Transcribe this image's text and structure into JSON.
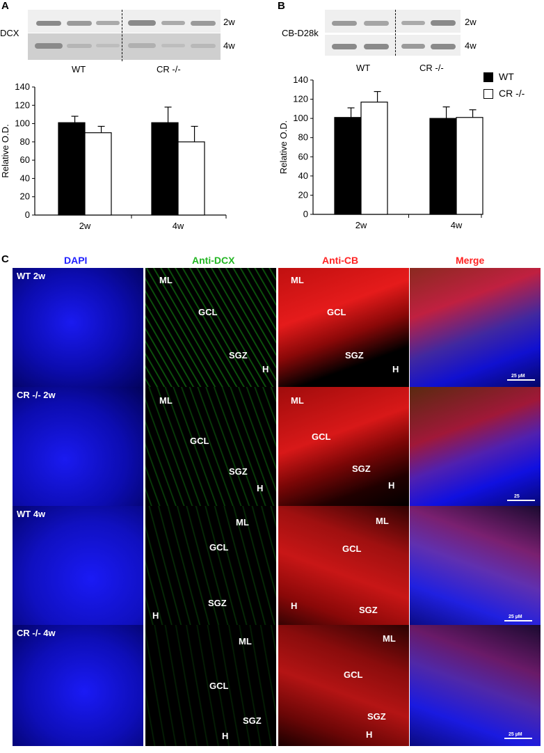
{
  "panel_a": {
    "letter": "A",
    "blot_label": "DCX",
    "row_labels": [
      "2w",
      "4w"
    ],
    "group_labels": [
      "WT",
      "CR -/-"
    ]
  },
  "panel_b": {
    "letter": "B",
    "blot_label": "CB-D28k",
    "row_labels": [
      "2w",
      "4w"
    ],
    "group_labels": [
      "WT",
      "CR -/-"
    ]
  },
  "legend": {
    "wt": "WT",
    "cr": "CR -/-"
  },
  "panel_c": {
    "letter": "C",
    "column_headers": [
      "DAPI",
      "Anti-DCX",
      "Anti-CB",
      "Merge"
    ],
    "header_colors": [
      "#1f1fff",
      "#22b522",
      "#ff2222",
      "#ff2222"
    ],
    "row_labels": [
      "WT 2w",
      "CR -/- 2w",
      "WT 4w",
      "CR -/- 4w"
    ],
    "scale_text": "25 µM",
    "scale_text_short": "25",
    "region_labels": {
      "ml": "ML",
      "gcl": "GCL",
      "sgz": "SGZ",
      "h": "H"
    }
  },
  "chart_data": [
    {
      "type": "bar",
      "panel": "A",
      "categories": [
        "2w",
        "4w"
      ],
      "series": [
        {
          "name": "WT",
          "values": [
            101,
            101
          ],
          "errors": [
            7,
            17
          ],
          "color": "#000000"
        },
        {
          "name": "CR -/-",
          "values": [
            90,
            80
          ],
          "errors": [
            7,
            17
          ],
          "color": "#ffffff"
        }
      ],
      "ylabel": "Relative O.D.",
      "ylim": [
        0,
        140
      ],
      "yticks": [
        0,
        20,
        40,
        60,
        80,
        100,
        120,
        140
      ]
    },
    {
      "type": "bar",
      "panel": "B",
      "categories": [
        "2w",
        "4w"
      ],
      "series": [
        {
          "name": "WT",
          "values": [
            101,
            100
          ],
          "errors": [
            10,
            12
          ],
          "color": "#000000"
        },
        {
          "name": "CR -/-",
          "values": [
            117,
            101
          ],
          "errors": [
            11,
            8
          ],
          "color": "#ffffff"
        }
      ],
      "ylabel": "Relative O.D.",
      "ylim": [
        0,
        140
      ],
      "yticks": [
        0,
        20,
        40,
        60,
        80,
        100,
        120,
        140
      ]
    }
  ]
}
